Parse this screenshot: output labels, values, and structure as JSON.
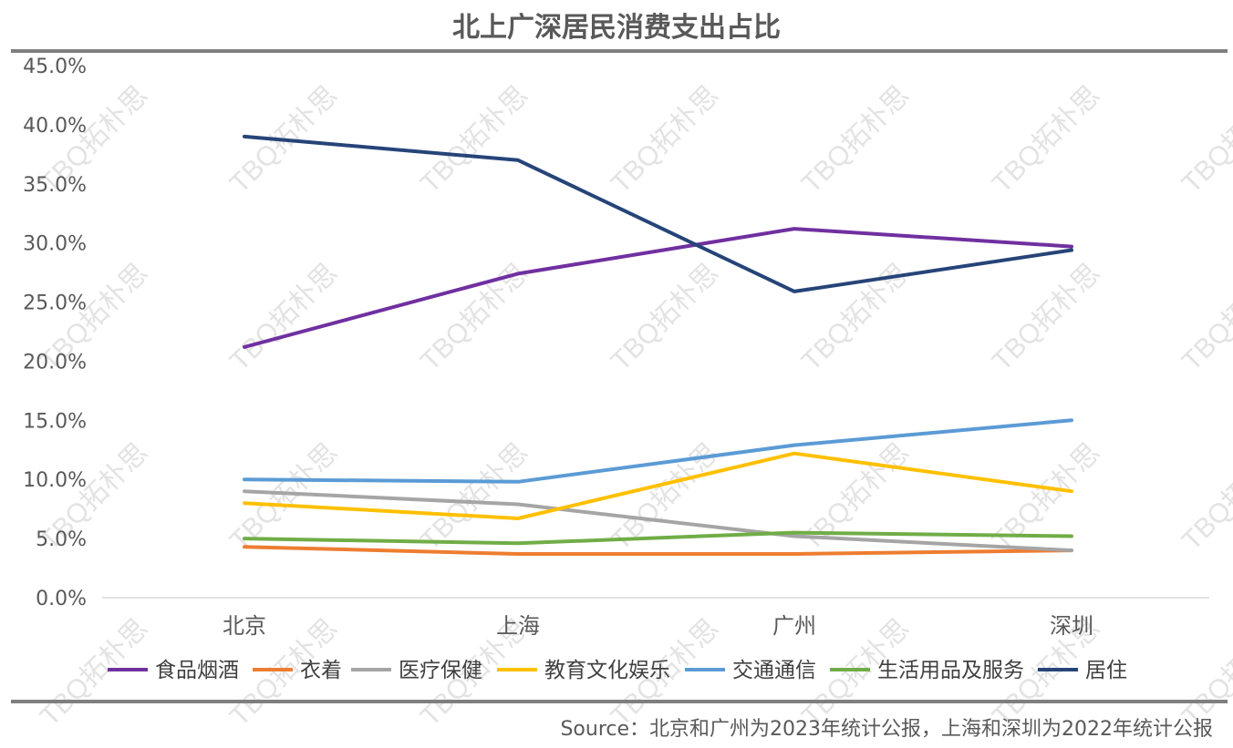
{
  "chart_data": {
    "type": "line",
    "title": "北上广深居民消费支出占比",
    "categories": [
      "北京",
      "上海",
      "广州",
      "深圳"
    ],
    "ylim": [
      0,
      45
    ],
    "yticks": [
      "0.0%",
      "5.0%",
      "10.0%",
      "15.0%",
      "20.0%",
      "25.0%",
      "30.0%",
      "35.0%",
      "40.0%",
      "45.0%"
    ],
    "grid": "horizontal-baseline-only",
    "legend_position": "bottom",
    "series": [
      {
        "name": "食品烟酒",
        "color": "#7030A0",
        "values": [
          21.2,
          27.4,
          31.2,
          29.7
        ]
      },
      {
        "name": "衣着",
        "color": "#ED7D31",
        "values": [
          4.3,
          3.7,
          3.7,
          4.0
        ]
      },
      {
        "name": "医疗保健",
        "color": "#A5A5A5",
        "values": [
          9.0,
          7.9,
          5.2,
          4.0
        ]
      },
      {
        "name": "教育文化娱乐",
        "color": "#FFC000",
        "values": [
          8.0,
          6.7,
          12.2,
          9.0
        ]
      },
      {
        "name": "交通通信",
        "color": "#5B9BD5",
        "values": [
          10.0,
          9.8,
          12.9,
          15.0
        ]
      },
      {
        "name": "生活用品及服务",
        "color": "#70AD47",
        "values": [
          5.0,
          4.6,
          5.5,
          5.2
        ]
      },
      {
        "name": "居住",
        "color": "#264478",
        "values": [
          39.0,
          37.0,
          25.9,
          29.4
        ]
      }
    ]
  },
  "source": "Source：北京和广州为2023年统计公报，上海和深圳为2022年统计公报",
  "watermark": "TBQ拓朴思"
}
